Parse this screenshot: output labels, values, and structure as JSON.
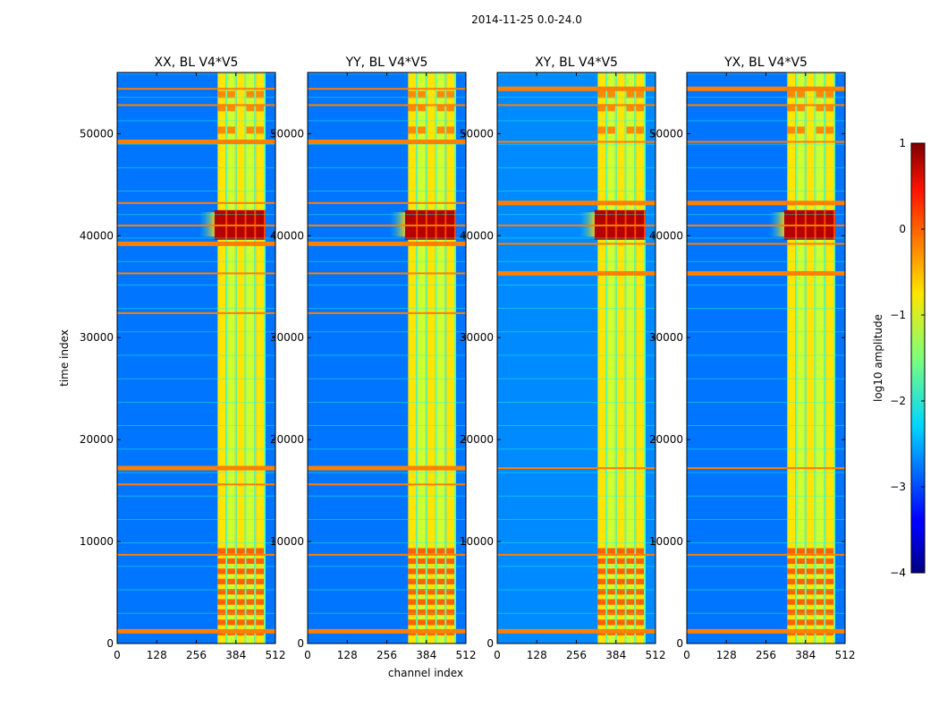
{
  "figure": {
    "suptitle": "2014-11-25 0.0-24.0",
    "xlabel": "channel index",
    "ylabel": "time index"
  },
  "chart_data": [
    {
      "type": "heatmap",
      "title": "XX, BL V4*V5",
      "xlabel": "channel index",
      "ylabel": "time index",
      "xlim": [
        0,
        512
      ],
      "ylim": [
        0,
        56000
      ],
      "x_ticks": [
        0,
        128,
        256,
        384,
        512
      ],
      "y_ticks": [
        0,
        10000,
        20000,
        30000,
        40000,
        50000
      ],
      "color_scale": "log10 amplitude (jet)",
      "background_level": -2.8,
      "bright_channel_band": [
        325,
        480
      ],
      "saturated_time_range": [
        39600,
        42500
      ],
      "flagged_rows": [
        1200,
        8700,
        15600,
        17200,
        32400,
        36300,
        39200,
        41000,
        43200,
        49200,
        52800,
        54400
      ]
    },
    {
      "type": "heatmap",
      "title": "YY, BL V4*V5",
      "xlabel": "channel index",
      "ylabel": "time index",
      "xlim": [
        0,
        512
      ],
      "ylim": [
        0,
        56000
      ],
      "x_ticks": [
        0,
        128,
        256,
        384,
        512
      ],
      "y_ticks": [
        0,
        10000,
        20000,
        30000,
        40000,
        50000
      ],
      "color_scale": "log10 amplitude (jet)",
      "background_level": -2.8,
      "bright_channel_band": [
        325,
        480
      ],
      "saturated_time_range": [
        39600,
        42500
      ],
      "flagged_rows": [
        1200,
        8700,
        15600,
        17200,
        32400,
        36300,
        39200,
        41000,
        43200,
        49200,
        52800,
        54400
      ]
    },
    {
      "type": "heatmap",
      "title": "XY, BL V4*V5",
      "xlabel": "channel index",
      "ylabel": "time index",
      "xlim": [
        0,
        512
      ],
      "ylim": [
        0,
        56000
      ],
      "x_ticks": [
        0,
        128,
        256,
        384,
        512
      ],
      "y_ticks": [
        0,
        10000,
        20000,
        30000,
        40000,
        50000
      ],
      "color_scale": "log10 amplitude (jet)",
      "background_level": -2.7,
      "bright_channel_band": [
        325,
        480
      ],
      "saturated_time_range": [
        39600,
        42500
      ],
      "flagged_rows": [
        1200,
        8700,
        17200,
        36300,
        39200,
        41000,
        43200,
        49200,
        52800,
        54400
      ]
    },
    {
      "type": "heatmap",
      "title": "YX, BL V4*V5",
      "xlabel": "channel index",
      "ylabel": "time index",
      "xlim": [
        0,
        512
      ],
      "ylim": [
        0,
        56000
      ],
      "x_ticks": [
        0,
        128,
        256,
        384,
        512
      ],
      "y_ticks": [
        0,
        10000,
        20000,
        30000,
        40000,
        50000
      ],
      "color_scale": "log10 amplitude (jet)",
      "background_level": -2.8,
      "bright_channel_band": [
        325,
        480
      ],
      "saturated_time_range": [
        39600,
        42500
      ],
      "flagged_rows": [
        1200,
        8700,
        17200,
        36300,
        39200,
        41000,
        43200,
        49200,
        52800,
        54400
      ]
    }
  ],
  "colorbar": {
    "label": "log10 amplitude",
    "ticks": [
      1,
      0,
      -1,
      -2,
      -3,
      -4
    ],
    "range": [
      -4,
      1
    ],
    "colormap": "jet"
  },
  "colors": {
    "flag_row": "#ff7f00",
    "background": "#2060ff",
    "band": "#ffff40",
    "saturated": "#a00000"
  }
}
